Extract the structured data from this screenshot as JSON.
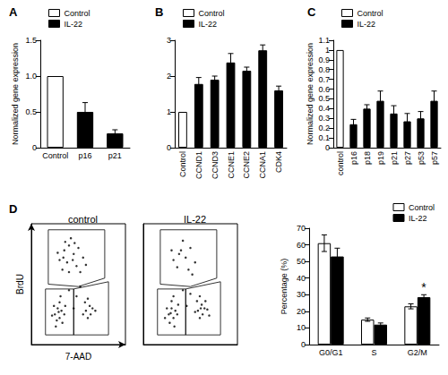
{
  "chart_data": [
    {
      "type": "bar",
      "panel_label": "A",
      "y_label": "Normalized gene expression",
      "categories": [
        "Control",
        "p16",
        "p21"
      ],
      "series": [
        {
          "name": "Control",
          "color": "#ffffff",
          "values": [
            1.0,
            null,
            null
          ],
          "errors": [
            null,
            null,
            null
          ]
        },
        {
          "name": "IL-22",
          "color": "#000000",
          "values": [
            null,
            0.5,
            0.2
          ],
          "errors": [
            null,
            0.13,
            0.05
          ]
        }
      ],
      "ylim": [
        0,
        1.5
      ],
      "yticks": [
        0,
        0.5,
        {
          "value": 1,
          "label": "1.0"
        },
        1.5
      ],
      "grid": false,
      "legend": "top-left"
    },
    {
      "type": "bar",
      "panel_label": "B",
      "categories": [
        "Control",
        "CCND1",
        "CCND3",
        "CCNE1",
        "CCNE2",
        "CCNA1",
        "CDK4"
      ],
      "series": [
        {
          "name": "Control",
          "color": "#ffffff",
          "values": [
            1.0,
            null,
            null,
            null,
            null,
            null,
            null
          ],
          "errors": [
            null,
            null,
            null,
            null,
            null,
            null,
            null
          ]
        },
        {
          "name": "IL-22",
          "color": "#000000",
          "values": [
            null,
            1.78,
            1.9,
            2.38,
            2.15,
            2.72,
            1.6
          ],
          "errors": [
            null,
            0.18,
            0.1,
            0.25,
            0.1,
            0.15,
            0.12
          ]
        }
      ],
      "ylim": [
        0,
        3
      ],
      "yticks": [
        0,
        1,
        2,
        3
      ],
      "grid": false,
      "legend": "top-left"
    },
    {
      "type": "bar",
      "panel_label": "C",
      "y_label": "Normalized gene expression",
      "categories": [
        "control",
        "p16",
        "p18",
        "p19",
        "p21",
        "p27",
        "p53",
        "p57"
      ],
      "series": [
        {
          "name": "Control",
          "color": "#ffffff",
          "values": [
            1.0,
            null,
            null,
            null,
            null,
            null,
            null,
            null
          ],
          "errors": [
            null,
            null,
            null,
            null,
            null,
            null,
            null,
            null
          ]
        },
        {
          "name": "IL-22",
          "color": "#000000",
          "values": [
            null,
            0.24,
            0.4,
            0.48,
            0.35,
            0.27,
            0.3,
            0.48
          ],
          "errors": [
            null,
            0.05,
            0.04,
            0.1,
            0.08,
            0.08,
            0.07,
            0.1
          ]
        }
      ],
      "ylim": [
        0,
        1.1
      ],
      "yticks": [
        0,
        0.1,
        0.2,
        0.3,
        0.4,
        0.5,
        0.6,
        0.7,
        0.8,
        0.9,
        1,
        1.1
      ],
      "grid": false,
      "legend": "top-left"
    },
    {
      "type": "scatter",
      "panel_label": "D",
      "title": "control",
      "x_label": "7-AAD",
      "y_label": "BrdU",
      "color": "#000000",
      "marker": "circle",
      "tick_labels": false,
      "grid": false,
      "xlim": [
        0,
        100
      ],
      "ylim": [
        0,
        100
      ],
      "points": [
        [
          30,
          70
        ],
        [
          35,
          78
        ],
        [
          40,
          82
        ],
        [
          45,
          75
        ],
        [
          38,
          68
        ],
        [
          50,
          80
        ],
        [
          42,
          88
        ],
        [
          33,
          62
        ],
        [
          48,
          65
        ],
        [
          55,
          72
        ],
        [
          36,
          85
        ],
        [
          44,
          70
        ],
        [
          52,
          60
        ],
        [
          28,
          76
        ],
        [
          40,
          60
        ],
        [
          58,
          66
        ],
        [
          46,
          84
        ],
        [
          34,
          72
        ],
        [
          25,
          25
        ],
        [
          28,
          30
        ],
        [
          30,
          22
        ],
        [
          32,
          28
        ],
        [
          27,
          20
        ],
        [
          35,
          25
        ],
        [
          30,
          35
        ],
        [
          24,
          32
        ],
        [
          33,
          18
        ],
        [
          29,
          27
        ],
        [
          36,
          32
        ],
        [
          22,
          24
        ],
        [
          31,
          40
        ],
        [
          26,
          15
        ],
        [
          58,
          28
        ],
        [
          62,
          32
        ],
        [
          60,
          22
        ],
        [
          65,
          30
        ],
        [
          57,
          35
        ],
        [
          63,
          25
        ],
        [
          68,
          28
        ],
        [
          60,
          38
        ],
        [
          55,
          25
        ],
        [
          45,
          30
        ],
        [
          48,
          40
        ],
        [
          40,
          45
        ],
        [
          52,
          48
        ]
      ],
      "gates": [
        [
          [
            18,
            50
          ],
          [
            18,
            95
          ],
          [
            78,
            95
          ],
          [
            78,
            55
          ],
          [
            50,
            48
          ]
        ],
        [
          [
            15,
            8
          ],
          [
            15,
            46
          ],
          [
            45,
            46
          ],
          [
            45,
            8
          ]
        ],
        [
          [
            45,
            8
          ],
          [
            45,
            46
          ],
          [
            82,
            52
          ],
          [
            82,
            8
          ]
        ]
      ]
    },
    {
      "type": "scatter",
      "title": "IL-22",
      "color": "#000000",
      "marker": "circle",
      "tick_labels": false,
      "grid": false,
      "xlim": [
        0,
        100
      ],
      "ylim": [
        0,
        100
      ],
      "points": [
        [
          32,
          70
        ],
        [
          40,
          78
        ],
        [
          45,
          72
        ],
        [
          36,
          64
        ],
        [
          50,
          80
        ],
        [
          42,
          86
        ],
        [
          55,
          68
        ],
        [
          38,
          75
        ],
        [
          48,
          62
        ],
        [
          30,
          78
        ],
        [
          52,
          58
        ],
        [
          27,
          25
        ],
        [
          30,
          30
        ],
        [
          32,
          22
        ],
        [
          34,
          28
        ],
        [
          28,
          18
        ],
        [
          36,
          25
        ],
        [
          30,
          36
        ],
        [
          25,
          30
        ],
        [
          33,
          15
        ],
        [
          29,
          26
        ],
        [
          37,
          33
        ],
        [
          23,
          22
        ],
        [
          32,
          40
        ],
        [
          58,
          28
        ],
        [
          62,
          33
        ],
        [
          60,
          22
        ],
        [
          65,
          30
        ],
        [
          57,
          36
        ],
        [
          63,
          25
        ],
        [
          68,
          29
        ],
        [
          60,
          40
        ],
        [
          55,
          27
        ],
        [
          66,
          36
        ],
        [
          70,
          24
        ],
        [
          61,
          30
        ],
        [
          46,
          32
        ],
        [
          50,
          42
        ],
        [
          42,
          45
        ]
      ],
      "gates": [
        [
          [
            18,
            50
          ],
          [
            18,
            95
          ],
          [
            78,
            95
          ],
          [
            78,
            55
          ],
          [
            50,
            48
          ]
        ],
        [
          [
            15,
            8
          ],
          [
            15,
            46
          ],
          [
            45,
            46
          ],
          [
            45,
            8
          ]
        ],
        [
          [
            45,
            8
          ],
          [
            45,
            46
          ],
          [
            82,
            52
          ],
          [
            82,
            8
          ]
        ]
      ]
    },
    {
      "type": "bar",
      "y_label": "Percentage (%)",
      "categories": [
        "G0/G1",
        "S",
        "G2/M"
      ],
      "series": [
        {
          "name": "Control",
          "color": "#ffffff",
          "values": [
            61,
            15,
            23
          ],
          "errors": [
            5,
            1,
            1.5
          ]
        },
        {
          "name": "IL-22",
          "color": "#000000",
          "values": [
            53,
            12,
            28.5
          ],
          "errors": [
            5,
            1,
            1.5
          ]
        }
      ],
      "ylim": [
        0,
        70
      ],
      "yticks": [
        0,
        10,
        20,
        30,
        40,
        50,
        60,
        70
      ],
      "annotations": [
        {
          "text": "*",
          "category": "G2/M",
          "series": "IL-22"
        }
      ],
      "grid": false,
      "legend": "top-right"
    }
  ]
}
